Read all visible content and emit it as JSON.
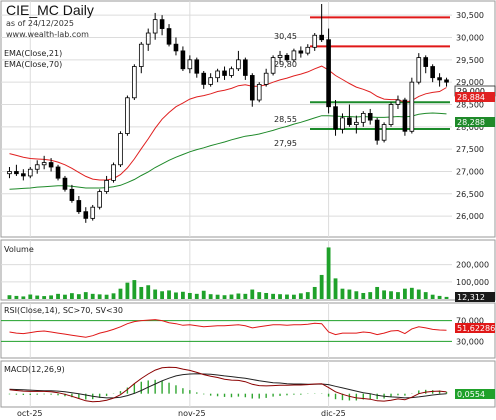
{
  "title": "CIE_MC Daily",
  "subtitle": "as of 24/12/2025",
  "website": "www.wealth-lab.com",
  "legend": {
    "ema_fast": "EMA(Close,21)",
    "ema_slow": "EMA(Close,70)",
    "volume": "Volume",
    "rsi": "RSI(Close,14), SC>70, SV<30",
    "macd": "MACD(12,26,9)"
  },
  "colors": {
    "candle": "#000000",
    "ema_fast": "#e02020",
    "ema_slow": "#1f8a2a",
    "level_red": "#e01818",
    "level_green": "#1b8a2a",
    "volume": "#1fa12a",
    "rsi": "#e01818",
    "rsi_band": "#1fa12a",
    "macd": "#8b0000",
    "macd_signal": "#222222",
    "macd_hist": "#2fa52f",
    "price_tag": "#1a1a1a",
    "ema_fast_tag": "#e02020",
    "ema_slow_tag": "#1f8a2a"
  },
  "x_axis": {
    "labels": [
      "oct-25",
      "nov-25",
      "dic-25"
    ]
  },
  "y_axis_price": {
    "ticks": [
      "30,500",
      "30,000",
      "29,500",
      "29,000",
      "28,500",
      "28,000",
      "27,500",
      "27,000",
      "26,500",
      "26,000"
    ]
  },
  "y_axis_volume": {
    "ticks": [
      "200,000",
      "100,000"
    ]
  },
  "y_axis_rsi": {
    "ticks": [
      "70,000",
      "30,000"
    ]
  },
  "level_labels": [
    "30,45",
    "29,80",
    "28,55",
    "27,95"
  ],
  "last_values": {
    "close": "29,000",
    "ema_fast": "28,884",
    "ema_slow": "28,288",
    "volume": "12,312",
    "rsi": "51,62286",
    "macd": "0,0554"
  },
  "chart_data": {
    "type": "candlestick",
    "title": "CIE_MC Daily",
    "x": [
      "2025-09-26",
      "2025-09-29",
      "2025-09-30",
      "2025-10-01",
      "2025-10-02",
      "2025-10-03",
      "2025-10-06",
      "2025-10-07",
      "2025-10-08",
      "2025-10-09",
      "2025-10-10",
      "2025-10-13",
      "2025-10-14",
      "2025-10-15",
      "2025-10-16",
      "2025-10-17",
      "2025-10-20",
      "2025-10-21",
      "2025-10-22",
      "2025-10-23",
      "2025-10-24",
      "2025-10-27",
      "2025-10-28",
      "2025-10-29",
      "2025-10-30",
      "2025-10-31",
      "2025-11-03",
      "2025-11-04",
      "2025-11-05",
      "2025-11-06",
      "2025-11-07",
      "2025-11-10",
      "2025-11-11",
      "2025-11-12",
      "2025-11-13",
      "2025-11-14",
      "2025-11-17",
      "2025-11-18",
      "2025-11-19",
      "2025-11-20",
      "2025-11-21",
      "2025-11-24",
      "2025-11-25",
      "2025-11-26",
      "2025-11-27",
      "2025-11-28",
      "2025-12-01",
      "2025-12-02",
      "2025-12-03",
      "2025-12-04",
      "2025-12-05",
      "2025-12-08",
      "2025-12-09",
      "2025-12-10",
      "2025-12-11",
      "2025-12-12",
      "2025-12-15",
      "2025-12-16",
      "2025-12-17",
      "2025-12-18",
      "2025-12-19",
      "2025-12-22",
      "2025-12-23",
      "2025-12-24"
    ],
    "ohlc": [
      [
        26.95,
        27.1,
        26.85,
        27.0
      ],
      [
        27.0,
        27.15,
        26.9,
        26.95
      ],
      [
        26.95,
        27.05,
        26.8,
        26.9
      ],
      [
        26.9,
        27.1,
        26.85,
        27.05
      ],
      [
        27.05,
        27.25,
        26.95,
        27.15
      ],
      [
        27.15,
        27.35,
        27.05,
        27.2
      ],
      [
        27.2,
        27.3,
        27.0,
        27.1
      ],
      [
        27.1,
        27.15,
        26.8,
        26.85
      ],
      [
        26.85,
        26.9,
        26.55,
        26.6
      ],
      [
        26.6,
        26.7,
        26.3,
        26.35
      ],
      [
        26.35,
        26.45,
        26.05,
        26.1
      ],
      [
        26.1,
        26.2,
        25.85,
        25.95
      ],
      [
        25.95,
        26.25,
        25.9,
        26.2
      ],
      [
        26.2,
        26.6,
        26.15,
        26.55
      ],
      [
        26.55,
        26.9,
        26.5,
        26.8
      ],
      [
        26.8,
        27.2,
        26.75,
        27.15
      ],
      [
        27.15,
        27.9,
        27.1,
        27.85
      ],
      [
        27.85,
        28.7,
        27.8,
        28.65
      ],
      [
        28.65,
        29.4,
        28.6,
        29.35
      ],
      [
        29.35,
        29.9,
        29.2,
        29.85
      ],
      [
        29.85,
        30.2,
        29.7,
        30.1
      ],
      [
        30.1,
        30.55,
        29.95,
        30.4
      ],
      [
        30.4,
        30.5,
        30.05,
        30.2
      ],
      [
        30.2,
        30.3,
        29.8,
        29.85
      ],
      [
        29.85,
        30.0,
        29.6,
        29.7
      ],
      [
        29.7,
        29.8,
        29.25,
        29.3
      ],
      [
        29.3,
        29.6,
        29.2,
        29.5
      ],
      [
        29.5,
        29.55,
        29.1,
        29.2
      ],
      [
        29.2,
        29.25,
        28.85,
        28.95
      ],
      [
        28.95,
        29.2,
        28.9,
        29.1
      ],
      [
        29.1,
        29.3,
        29.0,
        29.25
      ],
      [
        29.25,
        29.35,
        29.05,
        29.15
      ],
      [
        29.15,
        29.35,
        29.1,
        29.3
      ],
      [
        29.3,
        29.7,
        29.25,
        29.5
      ],
      [
        29.5,
        29.55,
        29.05,
        29.15
      ],
      [
        29.15,
        29.2,
        28.45,
        28.6
      ],
      [
        28.6,
        29.0,
        28.55,
        28.95
      ],
      [
        28.95,
        29.3,
        28.9,
        29.2
      ],
      [
        29.2,
        29.6,
        29.15,
        29.55
      ],
      [
        29.55,
        29.7,
        29.4,
        29.6
      ],
      [
        29.6,
        29.65,
        29.45,
        29.5
      ],
      [
        29.5,
        29.75,
        29.45,
        29.7
      ],
      [
        29.7,
        29.8,
        29.55,
        29.65
      ],
      [
        29.65,
        29.85,
        29.6,
        29.78
      ],
      [
        29.78,
        30.1,
        29.7,
        30.05
      ],
      [
        30.05,
        30.75,
        29.9,
        29.95
      ],
      [
        29.95,
        30.2,
        28.3,
        28.45
      ],
      [
        28.45,
        28.6,
        27.8,
        27.95
      ],
      [
        27.95,
        28.3,
        27.85,
        28.2
      ],
      [
        28.2,
        28.5,
        28.0,
        28.05
      ],
      [
        28.05,
        28.25,
        27.85,
        28.1
      ],
      [
        28.1,
        28.35,
        28.0,
        28.3
      ],
      [
        28.3,
        28.4,
        28.05,
        28.15
      ],
      [
        28.15,
        28.2,
        27.6,
        27.7
      ],
      [
        27.7,
        28.1,
        27.65,
        28.05
      ],
      [
        28.05,
        28.55,
        28.0,
        28.5
      ],
      [
        28.5,
        28.7,
        28.4,
        28.6
      ],
      [
        28.6,
        28.65,
        27.8,
        27.9
      ],
      [
        27.9,
        29.1,
        27.85,
        29.0
      ],
      [
        29.0,
        29.65,
        28.95,
        29.55
      ],
      [
        29.55,
        29.6,
        29.2,
        29.35
      ],
      [
        29.35,
        29.4,
        29.0,
        29.1
      ],
      [
        29.1,
        29.2,
        28.9,
        29.05
      ],
      [
        29.05,
        29.1,
        28.9,
        29.0
      ]
    ],
    "ema21": [
      27.4,
      27.36,
      27.32,
      27.29,
      27.28,
      27.27,
      27.25,
      27.21,
      27.15,
      27.07,
      26.98,
      26.89,
      26.83,
      26.81,
      26.81,
      26.84,
      26.93,
      27.08,
      27.28,
      27.51,
      27.73,
      27.97,
      28.17,
      28.32,
      28.45,
      28.53,
      28.62,
      28.67,
      28.7,
      28.74,
      28.79,
      28.82,
      28.86,
      28.92,
      28.94,
      28.91,
      28.91,
      28.94,
      29.0,
      29.05,
      29.09,
      29.14,
      29.18,
      29.23,
      29.3,
      29.36,
      29.27,
      29.15,
      29.06,
      28.97,
      28.89,
      28.84,
      28.78,
      28.68,
      28.62,
      28.61,
      28.61,
      28.55,
      28.59,
      28.68,
      28.74,
      28.77,
      28.79,
      28.88
    ],
    "ema70": [
      26.6,
      26.61,
      26.62,
      26.63,
      26.65,
      26.66,
      26.67,
      26.68,
      26.68,
      26.67,
      26.65,
      26.63,
      26.63,
      26.63,
      26.64,
      26.66,
      26.69,
      26.75,
      26.82,
      26.91,
      26.99,
      27.09,
      27.17,
      27.25,
      27.32,
      27.38,
      27.44,
      27.49,
      27.53,
      27.58,
      27.62,
      27.66,
      27.71,
      27.75,
      27.79,
      27.81,
      27.84,
      27.88,
      27.92,
      27.97,
      28.01,
      28.06,
      28.1,
      28.15,
      28.2,
      28.25,
      28.25,
      28.24,
      28.23,
      28.23,
      28.22,
      28.23,
      28.22,
      28.21,
      28.21,
      28.22,
      28.23,
      28.22,
      28.24,
      28.28,
      28.3,
      28.31,
      28.3,
      28.29
    ],
    "volume": [
      22000,
      18000,
      15000,
      26000,
      20000,
      17000,
      21000,
      30000,
      25000,
      34000,
      28000,
      40000,
      30000,
      27000,
      25000,
      33000,
      60000,
      95000,
      110000,
      70000,
      80000,
      55000,
      45000,
      50000,
      38000,
      42000,
      35000,
      30000,
      48000,
      28000,
      25000,
      22000,
      26000,
      32000,
      30000,
      55000,
      40000,
      35000,
      30000,
      28000,
      26000,
      25000,
      33000,
      40000,
      70000,
      140000,
      300000,
      120000,
      60000,
      55000,
      45000,
      35000,
      40000,
      70000,
      50000,
      45000,
      40000,
      60000,
      65000,
      55000,
      40000,
      25000,
      18000,
      12312
    ],
    "rsi": [
      48,
      46,
      45,
      47,
      49,
      50,
      48,
      46,
      44,
      42,
      40,
      38,
      41,
      46,
      49,
      53,
      58,
      64,
      68,
      70,
      71,
      72,
      70,
      66,
      64,
      61,
      62,
      60,
      58,
      59,
      60,
      60,
      61,
      62,
      60,
      56,
      58,
      60,
      62,
      62,
      61,
      62,
      62,
      63,
      65,
      64,
      48,
      43,
      46,
      46,
      46,
      48,
      47,
      43,
      46,
      50,
      51,
      45,
      54,
      58,
      56,
      53,
      52,
      51.6
    ],
    "macd": [
      0.12,
      0.1,
      0.08,
      0.07,
      0.07,
      0.07,
      0.06,
      0.03,
      -0.02,
      -0.08,
      -0.15,
      -0.22,
      -0.25,
      -0.24,
      -0.2,
      -0.14,
      -0.03,
      0.13,
      0.31,
      0.47,
      0.61,
      0.73,
      0.8,
      0.82,
      0.81,
      0.76,
      0.72,
      0.66,
      0.59,
      0.54,
      0.5,
      0.45,
      0.42,
      0.41,
      0.37,
      0.29,
      0.25,
      0.24,
      0.25,
      0.26,
      0.26,
      0.27,
      0.27,
      0.28,
      0.3,
      0.31,
      0.19,
      0.06,
      -0.02,
      -0.08,
      -0.13,
      -0.15,
      -0.17,
      -0.22,
      -0.23,
      -0.2,
      -0.16,
      -0.19,
      -0.11,
      0.0,
      0.05,
      0.07,
      0.08,
      0.0554
    ],
    "macd_signal": [
      0.14,
      0.13,
      0.12,
      0.11,
      0.1,
      0.09,
      0.09,
      0.08,
      0.06,
      0.03,
      0.0,
      -0.04,
      -0.08,
      -0.11,
      -0.13,
      -0.13,
      -0.11,
      -0.06,
      0.01,
      0.1,
      0.2,
      0.3,
      0.4,
      0.48,
      0.55,
      0.59,
      0.61,
      0.62,
      0.61,
      0.6,
      0.58,
      0.55,
      0.53,
      0.5,
      0.48,
      0.44,
      0.4,
      0.37,
      0.34,
      0.33,
      0.31,
      0.3,
      0.3,
      0.29,
      0.29,
      0.3,
      0.28,
      0.23,
      0.18,
      0.13,
      0.08,
      0.03,
      0.0,
      -0.05,
      -0.08,
      -0.1,
      -0.11,
      -0.13,
      -0.12,
      -0.1,
      -0.07,
      -0.04,
      -0.02,
      0.0
    ],
    "levels_red": [
      30.45,
      29.8
    ],
    "levels_green": [
      28.55,
      27.95
    ],
    "price_range": [
      25.6,
      30.75
    ],
    "volume_range": [
      0,
      320000
    ],
    "rsi_range": [
      0,
      100
    ],
    "rsi_bands": [
      70,
      30
    ]
  }
}
